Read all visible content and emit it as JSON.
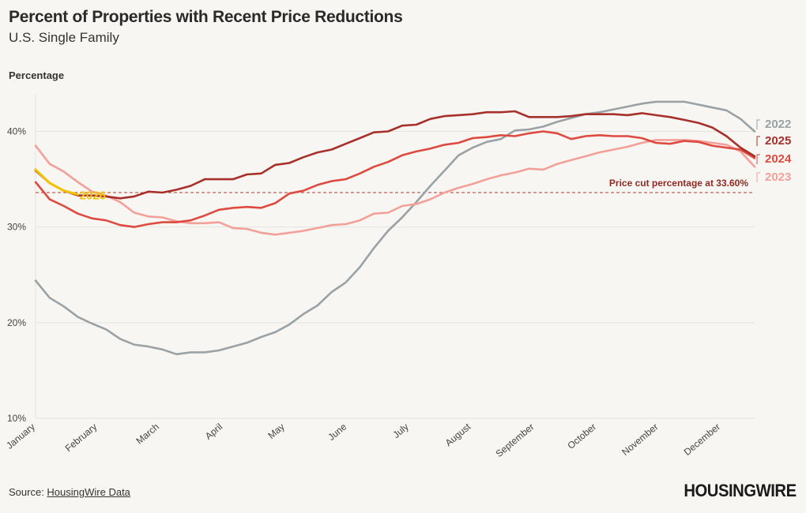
{
  "title": "Percent of Properties with Recent Price Reductions",
  "subtitle": "U.S. Single Family",
  "source_label": "Source: ",
  "source_link": "HousingWire Data",
  "brand": "HOUSINGWIRE",
  "chart_data": {
    "type": "line",
    "ylabel": "Percentage",
    "ylim": [
      10,
      44
    ],
    "yticks": [
      10,
      20,
      30,
      40
    ],
    "ytick_labels": [
      "10%",
      "20%",
      "30%",
      "40%"
    ],
    "x_unit": "week",
    "xlim": [
      1,
      52
    ],
    "xtick_positions": [
      1,
      5.4,
      9.8,
      14.3,
      18.7,
      23.1,
      27.5,
      31.9,
      36.4,
      40.8,
      45.2,
      49.6
    ],
    "xtick_labels": [
      "January",
      "February",
      "March",
      "April",
      "May",
      "June",
      "July",
      "August",
      "September",
      "October",
      "November",
      "December"
    ],
    "reference_line": {
      "value": 33.6,
      "label": "Price cut percentage at 33.60%"
    },
    "series": [
      {
        "name": "2022",
        "color": "#9aa2a5",
        "x": [
          1,
          2,
          3,
          4,
          5,
          6,
          7,
          8,
          9,
          10,
          11,
          12,
          13,
          14,
          15,
          16,
          17,
          18,
          19,
          20,
          21,
          22,
          23,
          24,
          25,
          26,
          27,
          28,
          29,
          30,
          31,
          32,
          33,
          34,
          35,
          36,
          37,
          38,
          39,
          40,
          41,
          42,
          43,
          44,
          45,
          46,
          47,
          48,
          49,
          50,
          51,
          52
        ],
        "values": [
          24.4,
          22.6,
          21.7,
          20.6,
          19.9,
          19.3,
          18.3,
          17.7,
          17.5,
          17.2,
          16.7,
          16.9,
          16.9,
          17.1,
          17.5,
          17.9,
          18.5,
          19.0,
          19.8,
          20.9,
          21.8,
          23.2,
          24.2,
          25.8,
          27.8,
          29.6,
          31.0,
          32.6,
          34.3,
          35.9,
          37.5,
          38.3,
          38.9,
          39.2,
          40.1,
          40.2,
          40.5,
          41.0,
          41.4,
          41.8,
          42.0,
          42.3,
          42.6,
          42.9,
          43.1,
          43.1,
          43.1,
          42.8,
          42.5,
          42.2,
          41.3,
          40.0
        ]
      },
      {
        "name": "2023",
        "color": "#f3a099",
        "x": [
          1,
          2,
          3,
          4,
          5,
          6,
          7,
          8,
          9,
          10,
          11,
          12,
          13,
          14,
          15,
          16,
          17,
          18,
          19,
          20,
          21,
          22,
          23,
          24,
          25,
          26,
          27,
          28,
          29,
          30,
          31,
          32,
          33,
          34,
          35,
          36,
          37,
          38,
          39,
          40,
          41,
          42,
          43,
          44,
          45,
          46,
          47,
          48,
          49,
          50,
          51,
          52
        ],
        "values": [
          38.5,
          36.6,
          35.8,
          34.7,
          33.7,
          33.3,
          32.6,
          31.5,
          31.1,
          31.0,
          30.6,
          30.4,
          30.4,
          30.5,
          29.9,
          29.8,
          29.4,
          29.2,
          29.4,
          29.6,
          29.9,
          30.2,
          30.3,
          30.7,
          31.4,
          31.5,
          32.2,
          32.4,
          32.9,
          33.6,
          34.1,
          34.5,
          35.0,
          35.4,
          35.7,
          36.1,
          36.0,
          36.6,
          37.0,
          37.4,
          37.8,
          38.1,
          38.4,
          38.8,
          39.1,
          39.1,
          39.1,
          39.0,
          38.8,
          38.6,
          37.9,
          36.3
        ]
      },
      {
        "name": "2024",
        "color": "#de4a3f",
        "x": [
          1,
          2,
          3,
          4,
          5,
          6,
          7,
          8,
          9,
          10,
          11,
          12,
          13,
          14,
          15,
          16,
          17,
          18,
          19,
          20,
          21,
          22,
          23,
          24,
          25,
          26,
          27,
          28,
          29,
          30,
          31,
          32,
          33,
          34,
          35,
          36,
          37,
          38,
          39,
          40,
          41,
          42,
          43,
          44,
          45,
          46,
          47,
          48,
          49,
          50,
          51,
          52
        ],
        "values": [
          34.7,
          32.9,
          32.2,
          31.4,
          30.9,
          30.7,
          30.2,
          30.0,
          30.3,
          30.5,
          30.5,
          30.7,
          31.2,
          31.8,
          32.0,
          32.1,
          32.0,
          32.5,
          33.5,
          33.8,
          34.4,
          34.8,
          35.0,
          35.6,
          36.3,
          36.8,
          37.5,
          37.9,
          38.2,
          38.6,
          38.8,
          39.3,
          39.4,
          39.6,
          39.5,
          39.8,
          40.0,
          39.8,
          39.2,
          39.5,
          39.6,
          39.5,
          39.5,
          39.3,
          38.8,
          38.7,
          39.0,
          38.9,
          38.5,
          38.3,
          38.1,
          37.2
        ]
      },
      {
        "name": "2025",
        "color": "#a8302b",
        "x": [
          1,
          2,
          3,
          4,
          5,
          6,
          7,
          8,
          9,
          10,
          11,
          12,
          13,
          14,
          15,
          16,
          17,
          18,
          19,
          20,
          21,
          22,
          23,
          24,
          25,
          26,
          27,
          28,
          29,
          30,
          31,
          32,
          33,
          34,
          35,
          36,
          37,
          38,
          39,
          40,
          41,
          42,
          43,
          44,
          45,
          46,
          47,
          48,
          49,
          50,
          51,
          52
        ],
        "values": [
          35.9,
          34.6,
          33.8,
          33.3,
          33.3,
          33.2,
          33.0,
          33.2,
          33.7,
          33.6,
          33.9,
          34.3,
          35.0,
          35.0,
          35.0,
          35.5,
          35.6,
          36.5,
          36.7,
          37.3,
          37.8,
          38.1,
          38.7,
          39.3,
          39.9,
          40.0,
          40.6,
          40.7,
          41.3,
          41.6,
          41.7,
          41.8,
          42.0,
          42.0,
          42.1,
          41.5,
          41.5,
          41.5,
          41.6,
          41.8,
          41.8,
          41.8,
          41.7,
          41.9,
          41.7,
          41.5,
          41.2,
          40.9,
          40.4,
          39.5,
          38.3,
          37.4
        ]
      },
      {
        "name": "2026",
        "color": "#f2c200",
        "x": [
          1,
          2,
          3,
          4
        ],
        "values": [
          36.0,
          34.6,
          33.8,
          33.4
        ]
      }
    ]
  }
}
